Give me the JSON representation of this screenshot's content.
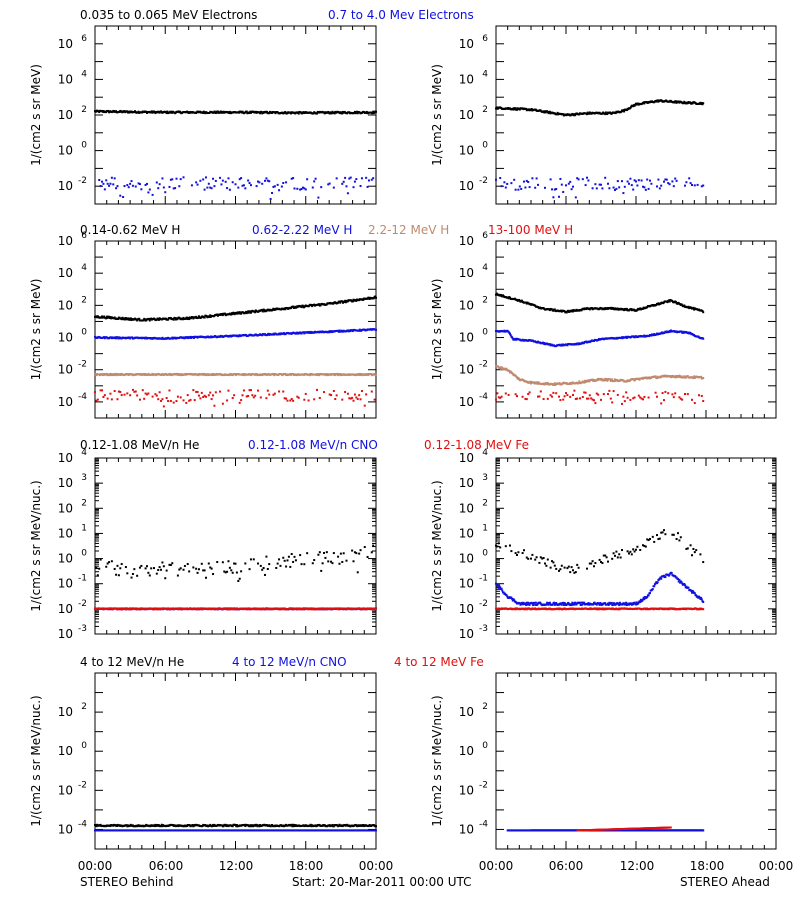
{
  "page": {
    "footer_left": "STEREO Behind",
    "footer_center": "Start: 20-Mar-2011 00:00 UTC",
    "footer_right": "STEREO Ahead",
    "x_tick_labels": [
      "00:00",
      "06:00",
      "12:00",
      "18:00",
      "00:00"
    ]
  },
  "chart_data": [
    {
      "type": "scatter",
      "row": 1,
      "spacecraft": "STEREO Behind",
      "ylabel": "1/(cm2 s sr MeV)",
      "ylog": true,
      "ylim_exp": [
        -3,
        7
      ],
      "ytick_exp": [
        -2,
        0,
        2,
        4,
        6
      ],
      "xlim_hours": [
        0,
        24
      ],
      "data_end_hours": 24,
      "series": [
        {
          "name": "0.035 to 0.065 MeV Electrons",
          "color": "#000000",
          "level_exp": 2.15,
          "scatter": 0.05,
          "points": [
            [
              0,
              2.2
            ],
            [
              6,
              2.15
            ],
            [
              12,
              2.15
            ],
            [
              18,
              2.12
            ],
            [
              24,
              2.15
            ]
          ]
        },
        {
          "name": "0.7 to 4.0 Mev Electrons",
          "color": "#1010e0",
          "level_exp": -1.85,
          "scatter": 0.35,
          "points": [
            [
              0,
              -1.85
            ],
            [
              24,
              -1.85
            ]
          ]
        }
      ]
    },
    {
      "type": "scatter",
      "row": 1,
      "spacecraft": "STEREO Ahead",
      "ylabel": "1/(cm2 s sr MeV)",
      "ylog": true,
      "ylim_exp": [
        -3,
        7
      ],
      "ytick_exp": [
        -2,
        0,
        2,
        4,
        6
      ],
      "xlim_hours": [
        0,
        24
      ],
      "data_end_hours": 17.8,
      "series": [
        {
          "name": "0.035 to 0.065 MeV Electrons",
          "color": "#000000",
          "level_exp": 2.3,
          "scatter": 0.05,
          "points": [
            [
              0,
              2.4
            ],
            [
              3,
              2.3
            ],
            [
              6,
              2.0
            ],
            [
              8,
              2.1
            ],
            [
              10,
              2.1
            ],
            [
              11,
              2.25
            ],
            [
              12,
              2.6
            ],
            [
              13,
              2.7
            ],
            [
              14,
              2.8
            ],
            [
              16,
              2.7
            ],
            [
              17.8,
              2.65
            ]
          ]
        },
        {
          "name": "0.7 to 4.0 Mev Electrons",
          "color": "#1010e0",
          "level_exp": -1.85,
          "scatter": 0.35,
          "points": [
            [
              0,
              -1.85
            ],
            [
              17.8,
              -1.85
            ]
          ]
        }
      ]
    },
    {
      "type": "scatter",
      "row": 2,
      "spacecraft": "STEREO Behind",
      "ylabel": "1/(cm2 s sr MeV)",
      "ylog": true,
      "ylim_exp": [
        -5,
        6
      ],
      "ytick_exp": [
        -4,
        -2,
        0,
        2,
        4,
        6
      ],
      "xlim_hours": [
        0,
        24
      ],
      "data_end_hours": 24,
      "series": [
        {
          "name": "0.14-0.62 MeV H",
          "color": "#000000",
          "scatter": 0.06,
          "points": [
            [
              0,
              1.3
            ],
            [
              4,
              1.1
            ],
            [
              8,
              1.2
            ],
            [
              12,
              1.5
            ],
            [
              16,
              1.8
            ],
            [
              20,
              2.1
            ],
            [
              22,
              2.3
            ],
            [
              24,
              2.5
            ]
          ]
        },
        {
          "name": "0.62-2.22 MeV H",
          "color": "#1010e0",
          "scatter": 0.04,
          "points": [
            [
              0,
              0.0
            ],
            [
              6,
              -0.05
            ],
            [
              12,
              0.1
            ],
            [
              18,
              0.3
            ],
            [
              24,
              0.5
            ]
          ]
        },
        {
          "name": "2.2-12 MeV H",
          "color": "#c08a70",
          "scatter": 0.04,
          "points": [
            [
              0,
              -2.3
            ],
            [
              24,
              -2.3
            ]
          ]
        },
        {
          "name": "13-100 MeV H",
          "color": "#e01010",
          "scatter": 0.35,
          "points": [
            [
              0,
              -3.6
            ],
            [
              24,
              -3.6
            ]
          ]
        }
      ]
    },
    {
      "type": "scatter",
      "row": 2,
      "spacecraft": "STEREO Ahead",
      "ylabel": "1/(cm2 s sr MeV)",
      "ylog": true,
      "ylim_exp": [
        -5,
        6
      ],
      "ytick_exp": [
        -4,
        -2,
        0,
        2,
        4,
        6
      ],
      "xlim_hours": [
        0,
        24
      ],
      "data_end_hours": 17.8,
      "series": [
        {
          "name": "0.14-0.62 MeV H",
          "color": "#000000",
          "scatter": 0.05,
          "points": [
            [
              0,
              2.7
            ],
            [
              2,
              2.3
            ],
            [
              4,
              1.8
            ],
            [
              6,
              1.6
            ],
            [
              8,
              1.8
            ],
            [
              10,
              1.8
            ],
            [
              12,
              1.7
            ],
            [
              14,
              2.1
            ],
            [
              15,
              2.3
            ],
            [
              16,
              2.0
            ],
            [
              17.8,
              1.6
            ]
          ]
        },
        {
          "name": "0.62-2.22 MeV H",
          "color": "#1010e0",
          "scatter": 0.04,
          "points": [
            [
              0,
              0.4
            ],
            [
              1,
              0.4
            ],
            [
              1.5,
              -0.1
            ],
            [
              3,
              -0.2
            ],
            [
              5,
              -0.5
            ],
            [
              7,
              -0.4
            ],
            [
              9,
              -0.1
            ],
            [
              11,
              0.0
            ],
            [
              13,
              0.1
            ],
            [
              15,
              0.4
            ],
            [
              16.5,
              0.3
            ],
            [
              17.8,
              -0.1
            ]
          ]
        },
        {
          "name": "2.2-12 MeV H",
          "color": "#c08a70",
          "scatter": 0.06,
          "points": [
            [
              0,
              -1.8
            ],
            [
              1,
              -2.0
            ],
            [
              2,
              -2.6
            ],
            [
              3,
              -2.8
            ],
            [
              5,
              -2.9
            ],
            [
              7,
              -2.8
            ],
            [
              9,
              -2.6
            ],
            [
              11,
              -2.7
            ],
            [
              13,
              -2.5
            ],
            [
              15,
              -2.4
            ],
            [
              17.8,
              -2.5
            ]
          ]
        },
        {
          "name": "13-100 MeV H",
          "color": "#e01010",
          "scatter": 0.3,
          "points": [
            [
              0,
              -3.5
            ],
            [
              6,
              -3.6
            ],
            [
              12,
              -3.6
            ],
            [
              17.8,
              -3.7
            ]
          ]
        }
      ]
    },
    {
      "type": "scatter",
      "row": 3,
      "spacecraft": "STEREO Behind",
      "ylabel": "1/(cm2 s sr MeV/nuc.)",
      "ylog": true,
      "ylim_exp": [
        -3,
        4
      ],
      "ytick_exp": [
        -3,
        -2,
        -1,
        0,
        1,
        2,
        3,
        4
      ],
      "xlim_hours": [
        0,
        24
      ],
      "data_end_hours": 24,
      "series": [
        {
          "name": "0.12-1.08 MeV/n He",
          "color": "#000000",
          "scatter": 0.28,
          "points": [
            [
              0,
              -0.2
            ],
            [
              3,
              -0.5
            ],
            [
              6,
              -0.4
            ],
            [
              10,
              -0.4
            ],
            [
              14,
              -0.2
            ],
            [
              18,
              0.0
            ],
            [
              22,
              0.1
            ],
            [
              24,
              0.3
            ]
          ]
        },
        {
          "name": "0.12-1.08 MeV/n CNO",
          "color": "#1010e0",
          "scatter": 0.02,
          "points": [
            [
              0,
              -2.0
            ],
            [
              24,
              -2.0
            ]
          ]
        },
        {
          "name": "0.12-1.08 MeV Fe",
          "color": "#e01010",
          "scatter": 0.02,
          "points": [
            [
              0,
              -2.0
            ],
            [
              24,
              -2.0
            ]
          ]
        }
      ]
    },
    {
      "type": "scatter",
      "row": 3,
      "spacecraft": "STEREO Ahead",
      "ylabel": "1/(cm2 s sr MeV/nuc.)",
      "ylog": true,
      "ylim_exp": [
        -3,
        4
      ],
      "ytick_exp": [
        -3,
        -2,
        -1,
        0,
        1,
        2,
        3,
        4
      ],
      "xlim_hours": [
        0,
        24
      ],
      "data_end_hours": 17.8,
      "series": [
        {
          "name": "0.12-1.08 MeV/n He",
          "color": "#000000",
          "scatter": 0.18,
          "points": [
            [
              0,
              0.5
            ],
            [
              2,
              0.3
            ],
            [
              4,
              -0.1
            ],
            [
              6,
              -0.5
            ],
            [
              8,
              -0.3
            ],
            [
              10,
              0.1
            ],
            [
              12,
              0.3
            ],
            [
              13,
              0.6
            ],
            [
              14,
              0.9
            ],
            [
              15,
              1.1
            ],
            [
              16,
              0.7
            ],
            [
              17,
              0.2
            ],
            [
              17.8,
              0.0
            ]
          ]
        },
        {
          "name": "0.12-1.08 MeV/n CNO",
          "color": "#1010e0",
          "scatter": 0.05,
          "points": [
            [
              0,
              -1.0
            ],
            [
              1,
              -1.5
            ],
            [
              2,
              -1.8
            ],
            [
              6,
              -1.8
            ],
            [
              12,
              -1.8
            ],
            [
              13,
              -1.5
            ],
            [
              14,
              -0.8
            ],
            [
              15,
              -0.6
            ],
            [
              16,
              -1.0
            ],
            [
              17.8,
              -1.7
            ]
          ]
        },
        {
          "name": "0.12-1.08 MeV Fe",
          "color": "#e01010",
          "scatter": 0.02,
          "points": [
            [
              0,
              -2.0
            ],
            [
              17.8,
              -2.0
            ]
          ]
        }
      ]
    },
    {
      "type": "scatter",
      "row": 4,
      "spacecraft": "STEREO Behind",
      "ylabel": "1/(cm2 s sr MeV/nuc.)",
      "ylog": true,
      "ylim_exp": [
        -5,
        4
      ],
      "ytick_exp": [
        -4,
        -2,
        0,
        2
      ],
      "xlim_hours": [
        0,
        24
      ],
      "data_end_hours": 24,
      "series": [
        {
          "name": "4 to 12 MeV/n He",
          "color": "#000000",
          "scatter": 0.04,
          "points": [
            [
              0,
              -3.8
            ],
            [
              24,
              -3.8
            ]
          ]
        },
        {
          "name": "4 to 12 MeV/n CNO",
          "color": "#1010e0",
          "scatter": 0.0,
          "points": [
            [
              0,
              -4.05
            ],
            [
              24,
              -4.05
            ]
          ]
        },
        {
          "name": "4 to 12 MeV Fe",
          "color": "#e01010",
          "scatter": 0.0,
          "points": []
        }
      ]
    },
    {
      "type": "scatter",
      "row": 4,
      "spacecraft": "STEREO Ahead",
      "ylabel": "1/(cm2 s sr MeV/nuc.)",
      "ylog": true,
      "ylim_exp": [
        -5,
        4
      ],
      "ytick_exp": [
        -4,
        -2,
        0,
        2
      ],
      "xlim_hours": [
        0,
        24
      ],
      "data_end_hours": 17.8,
      "series": [
        {
          "name": "4 to 12 MeV/n He",
          "color": "#000000",
          "scatter": 0.0,
          "points": [
            [
              3,
              -4.05
            ],
            [
              17.8,
              -4.05
            ]
          ]
        },
        {
          "name": "4 to 12 MeV/n CNO",
          "color": "#1010e0",
          "scatter": 0.0,
          "points": [
            [
              1,
              -4.05
            ],
            [
              17.8,
              -4.05
            ]
          ]
        },
        {
          "name": "4 to 12 MeV Fe",
          "color": "#e01010",
          "scatter": 0.0,
          "points": [
            [
              7,
              -4.05
            ],
            [
              15,
              -3.9
            ]
          ]
        }
      ]
    }
  ]
}
